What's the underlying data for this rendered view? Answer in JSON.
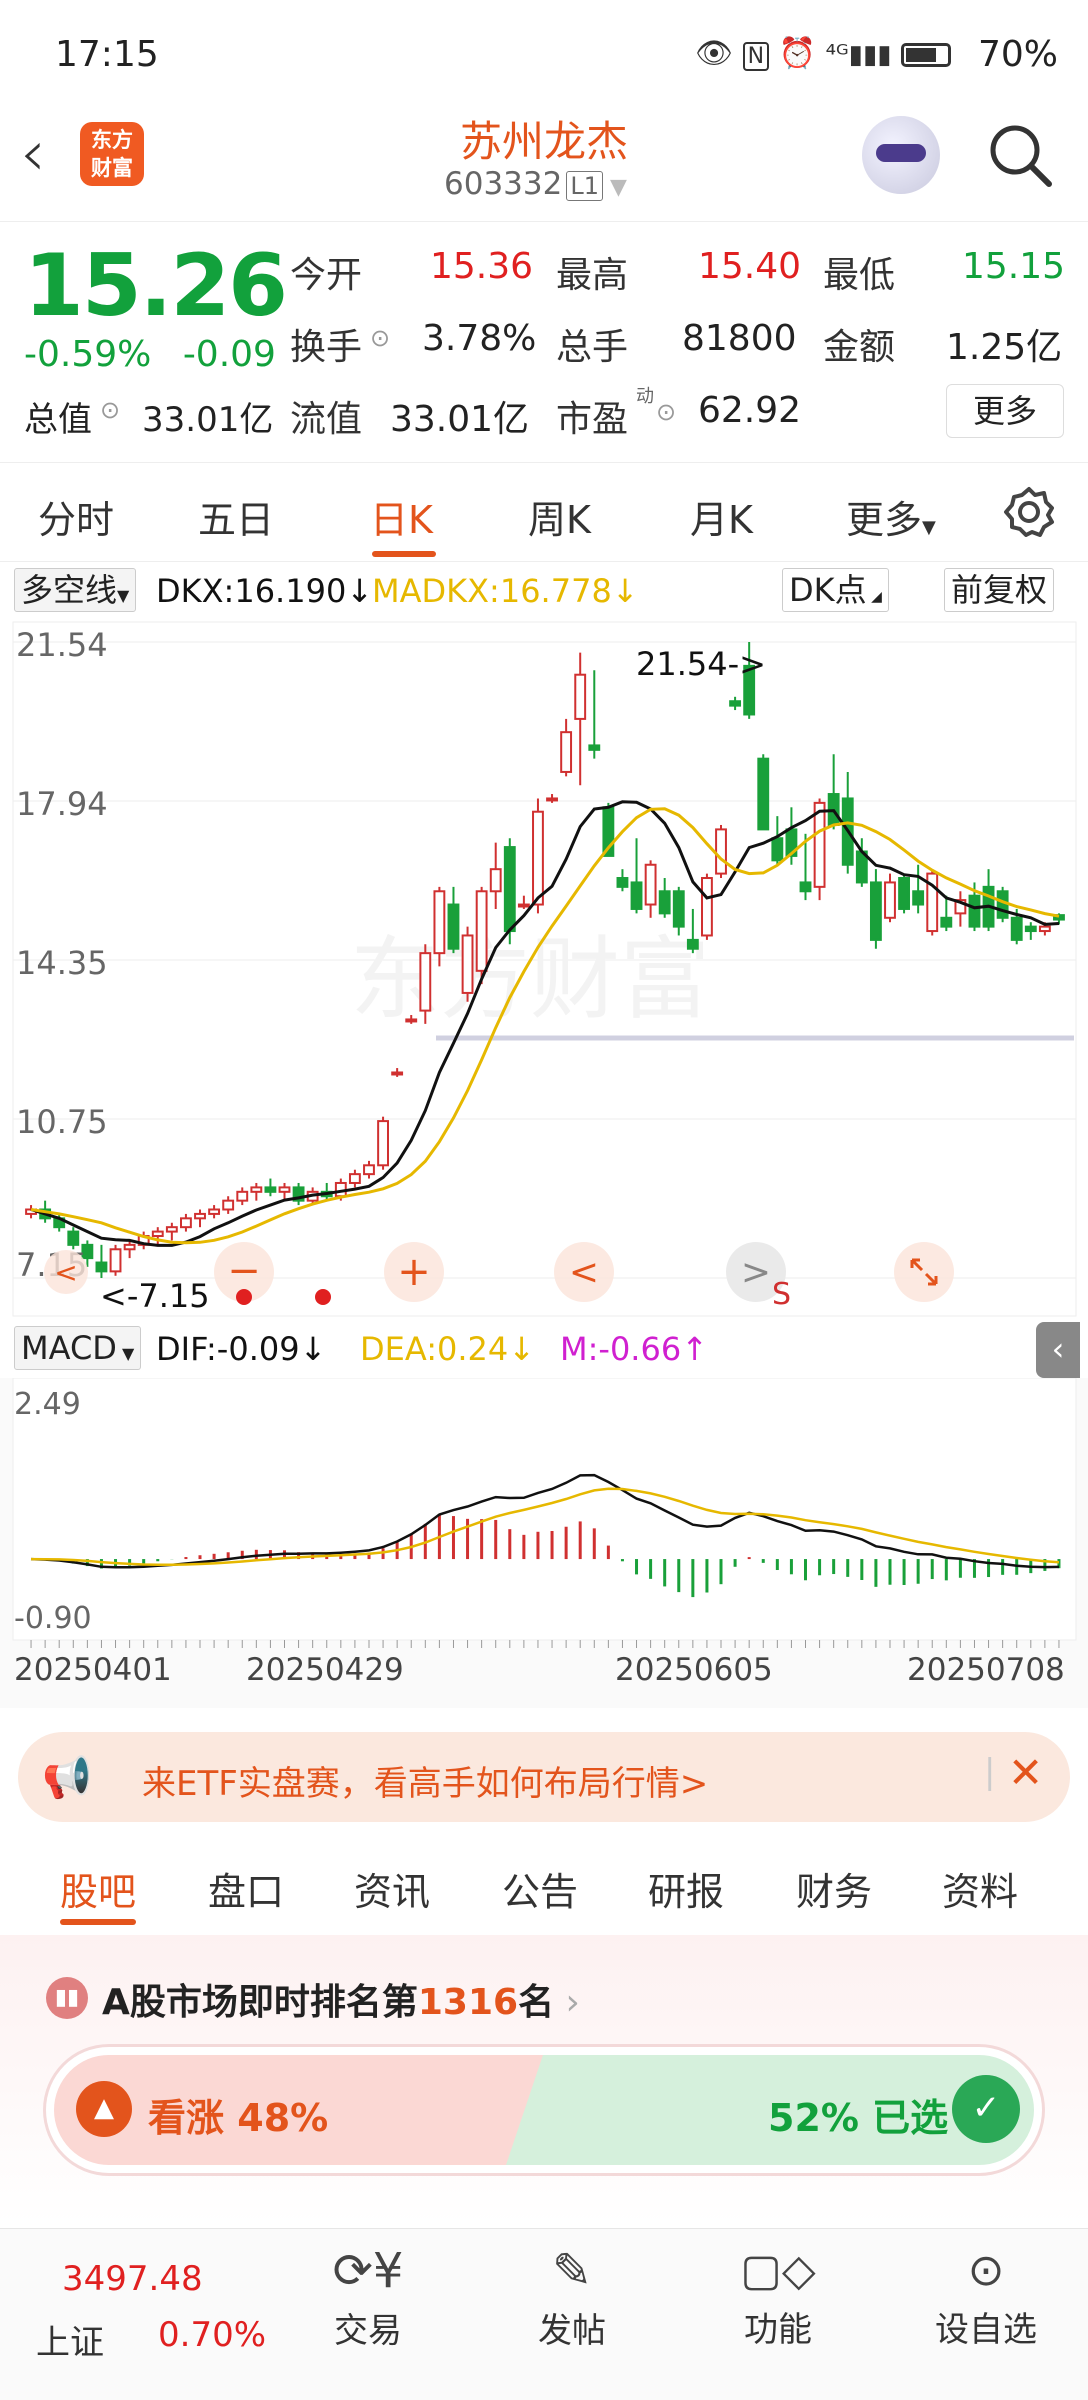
{
  "status_bar": {
    "time": "17:15",
    "battery": "70%",
    "icons": [
      "eye-icon",
      "nfc-icon",
      "alarm-icon",
      "signal-4g-icon",
      "battery-icon"
    ]
  },
  "header": {
    "stock_name": "苏州龙杰",
    "stock_code": "603332",
    "level": "L1",
    "logo_text": "东方财富"
  },
  "quote": {
    "price": "15.26",
    "change_pct": "-0.59%",
    "change": "-0.09",
    "fields": [
      {
        "label": "今开",
        "value": "15.36",
        "color": "red"
      },
      {
        "label": "最高",
        "value": "15.40",
        "color": "red"
      },
      {
        "label": "最低",
        "value": "15.15",
        "color": "green"
      },
      {
        "label": "换手",
        "value": "3.78%",
        "color": "dark"
      },
      {
        "label": "总手",
        "value": "81800",
        "color": "dark"
      },
      {
        "label": "金额",
        "value": "1.25亿",
        "color": "dark"
      },
      {
        "label": "总值",
        "value": "33.01亿",
        "color": "dark"
      },
      {
        "label": "流值",
        "value": "33.01亿",
        "color": "dark"
      },
      {
        "label": "市盈",
        "value": "62.92",
        "color": "dark"
      }
    ],
    "pe_superscript": "动",
    "more_label": "更多"
  },
  "tabs": [
    "分时",
    "五日",
    "日K",
    "周K",
    "月K",
    "更多"
  ],
  "active_tab": "日K",
  "indicator_bar": {
    "select": "多空线",
    "dkx": "DKX:16.190↓",
    "madkx": "MADKX:16.778↓",
    "dk_label": "DK点",
    "adjust": "前复权"
  },
  "chart": {
    "y_labels": [
      "21.54",
      "17.94",
      "14.35",
      "10.75",
      "7.15"
    ],
    "max_label": "21.54->",
    "min_label": "<-7.15",
    "controls": {
      "minus": "−",
      "plus": "+",
      "left": "<",
      "right": ">",
      "s_mark": "S"
    },
    "macd_bar": {
      "select": "MACD",
      "dif": "DIF:-0.09↓",
      "dea": "DEA:0.24↓",
      "m": "M:-0.66↑"
    },
    "macd_labels": [
      "2.49",
      "-0.90"
    ],
    "dates": [
      "20250401",
      "20250429",
      "20250605",
      "20250708"
    ],
    "colors": {
      "up": "#d03030",
      "down": "#19a03a",
      "dkx": "#111111",
      "madkx": "#e6b800",
      "dea": "#e6b800",
      "m": "#d020d0"
    }
  },
  "chart_data": {
    "type": "candlestick",
    "dkx": 16.19,
    "madkx": 16.778,
    "y_range": [
      7.15,
      21.54
    ],
    "highest": 21.54,
    "lowest": 7.15,
    "macd": {
      "dif": -0.09,
      "dea": 0.24,
      "m": -0.66,
      "range": [
        -0.9,
        2.49
      ]
    },
    "candles_ohlc": [
      [
        8.6,
        8.8,
        8.5,
        8.7
      ],
      [
        8.7,
        8.9,
        8.4,
        8.5
      ],
      [
        8.5,
        8.6,
        8.2,
        8.3
      ],
      [
        8.2,
        8.3,
        7.8,
        7.9
      ],
      [
        7.9,
        8.0,
        7.4,
        7.6
      ],
      [
        7.5,
        7.9,
        7.15,
        7.3
      ],
      [
        7.3,
        7.9,
        7.2,
        7.8
      ],
      [
        7.8,
        8.0,
        7.6,
        7.9
      ],
      [
        7.9,
        8.2,
        7.8,
        8.1
      ],
      [
        8.1,
        8.3,
        7.9,
        8.2
      ],
      [
        8.2,
        8.4,
        8.0,
        8.3
      ],
      [
        8.3,
        8.6,
        8.2,
        8.5
      ],
      [
        8.5,
        8.7,
        8.3,
        8.6
      ],
      [
        8.6,
        8.8,
        8.5,
        8.7
      ],
      [
        8.7,
        9.0,
        8.6,
        8.9
      ],
      [
        8.9,
        9.2,
        8.8,
        9.1
      ],
      [
        9.1,
        9.3,
        8.9,
        9.2
      ],
      [
        9.2,
        9.4,
        9.0,
        9.1
      ],
      [
        9.1,
        9.3,
        8.9,
        9.2
      ],
      [
        9.2,
        9.3,
        8.8,
        8.9
      ],
      [
        8.9,
        9.2,
        8.8,
        9.1
      ],
      [
        9.1,
        9.3,
        8.9,
        9.0
      ],
      [
        9.0,
        9.4,
        8.9,
        9.3
      ],
      [
        9.3,
        9.6,
        9.2,
        9.5
      ],
      [
        9.5,
        9.8,
        9.4,
        9.7
      ],
      [
        9.7,
        10.8,
        9.6,
        10.7
      ],
      [
        11.8,
        11.9,
        11.7,
        11.8
      ],
      [
        13.0,
        13.1,
        12.9,
        13.0
      ],
      [
        13.2,
        14.7,
        12.9,
        14.5
      ],
      [
        14.5,
        16.0,
        14.2,
        15.9
      ],
      [
        15.6,
        16.0,
        14.5,
        14.6
      ],
      [
        13.6,
        15.1,
        13.4,
        14.9
      ],
      [
        14.1,
        16.0,
        13.8,
        15.9
      ],
      [
        15.9,
        17.0,
        15.5,
        16.4
      ],
      [
        16.9,
        17.1,
        14.7,
        15.0
      ],
      [
        15.6,
        15.8,
        15.5,
        15.6
      ],
      [
        15.6,
        18.0,
        15.4,
        17.7
      ],
      [
        18.0,
        18.1,
        17.9,
        18.0
      ],
      [
        18.6,
        19.8,
        18.5,
        19.5
      ],
      [
        19.8,
        21.3,
        18.3,
        20.8
      ],
      [
        19.2,
        20.9,
        18.9,
        19.1
      ],
      [
        17.8,
        17.9,
        16.7,
        16.7
      ],
      [
        16.2,
        16.4,
        15.9,
        16.0
      ],
      [
        16.1,
        17.1,
        15.4,
        15.5
      ],
      [
        15.6,
        16.6,
        15.3,
        16.5
      ],
      [
        15.9,
        16.2,
        15.3,
        15.4
      ],
      [
        15.9,
        16.0,
        14.9,
        15.1
      ],
      [
        14.8,
        15.5,
        14.5,
        14.6
      ],
      [
        14.9,
        16.3,
        14.8,
        16.2
      ],
      [
        16.3,
        17.4,
        16.2,
        17.3
      ],
      [
        20.2,
        20.3,
        20.0,
        20.1
      ],
      [
        21.0,
        21.54,
        19.8,
        19.9
      ],
      [
        18.9,
        19.0,
        17.3,
        17.3
      ],
      [
        17.1,
        17.6,
        16.5,
        16.6
      ],
      [
        17.3,
        17.8,
        16.5,
        16.7
      ],
      [
        16.1,
        17.2,
        15.7,
        15.9
      ],
      [
        16.0,
        18.0,
        15.7,
        17.9
      ],
      [
        18.1,
        19.0,
        17.3,
        17.4
      ],
      [
        18.0,
        18.6,
        16.3,
        16.5
      ],
      [
        16.8,
        17.1,
        16.0,
        16.1
      ],
      [
        16.1,
        16.4,
        14.6,
        14.8
      ],
      [
        15.3,
        16.3,
        15.2,
        16.1
      ],
      [
        16.2,
        16.3,
        15.4,
        15.5
      ],
      [
        15.9,
        16.5,
        15.4,
        15.6
      ],
      [
        15.0,
        16.4,
        14.9,
        16.3
      ],
      [
        15.3,
        15.8,
        15.0,
        15.1
      ],
      [
        15.4,
        15.9,
        15.1,
        15.7
      ],
      [
        15.8,
        16.1,
        15.0,
        15.1
      ],
      [
        16.0,
        16.4,
        15.0,
        15.1
      ],
      [
        15.9,
        16.0,
        15.2,
        15.3
      ],
      [
        15.3,
        15.5,
        14.7,
        14.8
      ],
      [
        15.1,
        15.2,
        14.8,
        15.0
      ],
      [
        15.0,
        15.2,
        14.9,
        15.1
      ],
      [
        15.36,
        15.4,
        15.15,
        15.26
      ]
    ]
  },
  "banner": {
    "text": "来ETF实盘赛，看高手如何布局行情>"
  },
  "bottom_tabs": [
    "股吧",
    "盘口",
    "资讯",
    "公告",
    "研报",
    "财务",
    "资料"
  ],
  "active_bottom_tab": "股吧",
  "rank": {
    "prefix": "A股市场即时排名第",
    "number": "1316",
    "suffix": "名"
  },
  "vote": {
    "bull_label": "看涨",
    "bull_pct": "48%",
    "bear_label": "52% 已选",
    "bull_value": 48
  },
  "nav": {
    "index_value": "3497.48",
    "index_name": "上证",
    "index_change": "0.70%",
    "items": [
      "交易",
      "发帖",
      "功能",
      "设自选"
    ]
  }
}
